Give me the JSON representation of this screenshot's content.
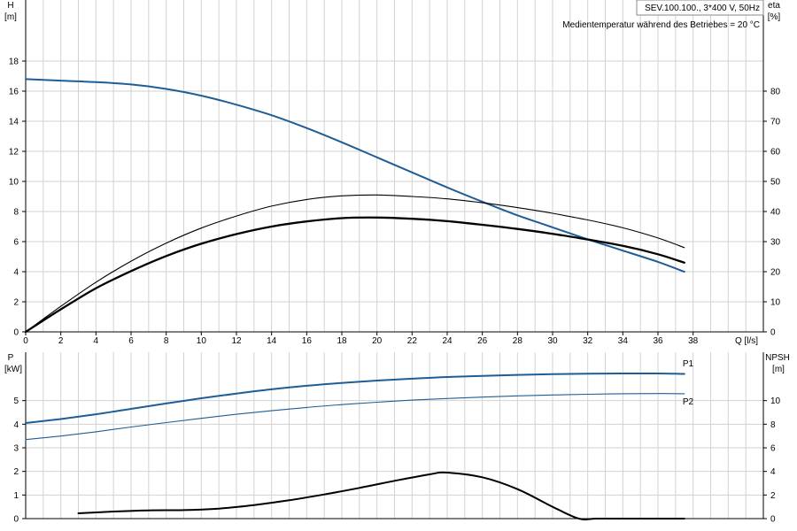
{
  "chart_data": [
    {
      "type": "line",
      "info_lines": [
        "SEV.100.100., 3*400 V, 50Hz",
        "Medientemperatur während des Betriebes = 20 °C"
      ],
      "xlabel": "Q [l/s]",
      "xlim": [
        0,
        42
      ],
      "xticks": [
        0,
        2,
        4,
        6,
        8,
        10,
        12,
        14,
        16,
        18,
        20,
        22,
        24,
        26,
        28,
        30,
        32,
        34,
        36,
        38
      ],
      "ylabel_left": [
        "H",
        "[m]"
      ],
      "ylim_left": [
        0,
        20
      ],
      "yticks_left": [
        0,
        2,
        4,
        6,
        8,
        10,
        12,
        14,
        16,
        18
      ],
      "ylabel_right": [
        "eta",
        "[%]"
      ],
      "ylim_right": [
        0,
        100
      ],
      "yticks_right": [
        0,
        10,
        20,
        30,
        40,
        50,
        60,
        70,
        80
      ],
      "grid": true,
      "series": [
        {
          "axis": "left",
          "color": "#1f5d96",
          "width": 2,
          "x": [
            0,
            2,
            4,
            6,
            8,
            10,
            12,
            14,
            16,
            18,
            20,
            22,
            24,
            26,
            28,
            30,
            32,
            34,
            36,
            37.5
          ],
          "values": [
            16.8,
            16.7,
            16.6,
            16.45,
            16.15,
            15.7,
            15.1,
            14.4,
            13.55,
            12.6,
            11.6,
            10.6,
            9.6,
            8.65,
            7.75,
            6.95,
            6.15,
            5.4,
            4.65,
            4.0
          ]
        },
        {
          "axis": "right",
          "color": "#000000",
          "width": 1.1,
          "x": [
            0,
            2,
            4,
            6,
            8,
            10,
            12,
            14,
            16,
            18,
            20,
            22,
            24,
            26,
            28,
            30,
            32,
            34,
            36,
            37.5
          ],
          "values": [
            0,
            8.5,
            16.5,
            23.5,
            29.5,
            34.5,
            38.5,
            41.8,
            44.0,
            45.2,
            45.5,
            45.0,
            44.2,
            42.9,
            41.3,
            39.4,
            37.2,
            34.6,
            31.2,
            28.0
          ]
        },
        {
          "axis": "right",
          "color": "#000000",
          "width": 2.3,
          "x": [
            0,
            2,
            4,
            6,
            8,
            10,
            12,
            14,
            16,
            18,
            20,
            22,
            24,
            26,
            28,
            30,
            32,
            34,
            36,
            37.5
          ],
          "values": [
            0,
            7.5,
            14.5,
            20.2,
            25.2,
            29.3,
            32.5,
            35.0,
            36.7,
            37.8,
            38.0,
            37.6,
            36.8,
            35.6,
            34.2,
            32.6,
            30.7,
            28.6,
            25.8,
            23.0
          ]
        }
      ]
    },
    {
      "type": "line",
      "xlim": [
        0,
        42
      ],
      "ylabel_left": [
        "P",
        "[kW]"
      ],
      "ylim_left": [
        0,
        6
      ],
      "yticks_left": [
        0,
        1,
        2,
        3,
        4,
        5
      ],
      "ylabel_right": [
        "NPSH",
        "[m]"
      ],
      "ylim_right": [
        0,
        12
      ],
      "yticks_right": [
        0,
        2,
        4,
        6,
        8,
        10
      ],
      "grid": true,
      "series": [
        {
          "name": "P1",
          "axis": "left",
          "color": "#1f5d96",
          "width": 2,
          "x": [
            0,
            2,
            4,
            6,
            8,
            10,
            12,
            14,
            16,
            18,
            20,
            22,
            24,
            26,
            28,
            30,
            32,
            34,
            36,
            37.5
          ],
          "values": [
            4.05,
            4.22,
            4.42,
            4.65,
            4.88,
            5.1,
            5.3,
            5.48,
            5.63,
            5.75,
            5.85,
            5.93,
            6.0,
            6.05,
            6.09,
            6.12,
            6.14,
            6.15,
            6.15,
            6.13
          ]
        },
        {
          "name": "P2",
          "axis": "left",
          "color": "#1f5d96",
          "width": 1.1,
          "x": [
            0,
            2,
            4,
            6,
            8,
            10,
            12,
            14,
            16,
            18,
            20,
            22,
            24,
            26,
            28,
            30,
            32,
            34,
            36,
            37.5
          ],
          "values": [
            3.35,
            3.5,
            3.68,
            3.88,
            4.07,
            4.25,
            4.42,
            4.57,
            4.71,
            4.83,
            4.93,
            5.02,
            5.09,
            5.15,
            5.2,
            5.24,
            5.27,
            5.29,
            5.3,
            5.29
          ]
        },
        {
          "axis": "right",
          "color": "#000000",
          "width": 2,
          "x": [
            3,
            5,
            7,
            9,
            11,
            13,
            15,
            17,
            19,
            21,
            23,
            24,
            26,
            28,
            30,
            31.5,
            32.5,
            34,
            36,
            37.5
          ],
          "values": [
            0.45,
            0.6,
            0.7,
            0.72,
            0.85,
            1.15,
            1.55,
            2.05,
            2.6,
            3.2,
            3.75,
            3.9,
            3.5,
            2.5,
            1.0,
            0,
            0,
            0,
            0,
            0
          ]
        }
      ]
    }
  ]
}
